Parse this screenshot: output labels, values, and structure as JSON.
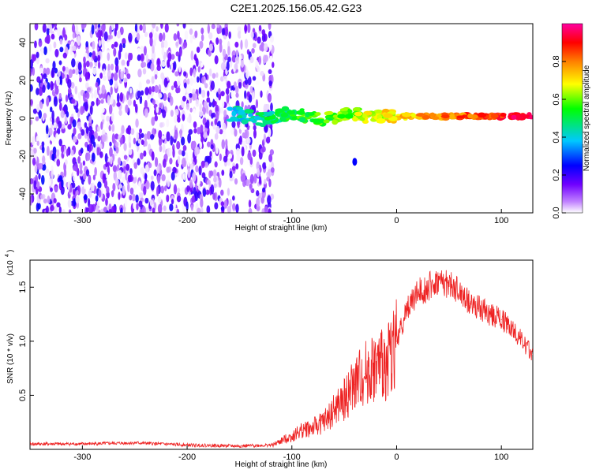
{
  "title": "C2E1.2025.156.05.42.G23",
  "chart_data": [
    {
      "type": "heatmap",
      "xlabel": "Height of straight line (km)",
      "ylabel": "Frequency (Hz)",
      "xlim": [
        -350,
        130
      ],
      "ylim": [
        -50,
        50
      ],
      "x_ticks": [
        -300,
        -200,
        -100,
        0,
        100
      ],
      "y_ticks": [
        -40,
        -20,
        0,
        20,
        40
      ],
      "colorbar": {
        "label": "Normalized spectral amplitude",
        "range": [
          0.0,
          1.0
        ],
        "ticks": [
          "0.0",
          "0.2",
          "0.4",
          "0.6",
          "0.8"
        ],
        "colors": [
          "#ffffff",
          "#b400ff",
          "#0000ff",
          "#00c8ff",
          "#00ff00",
          "#ffff00",
          "#ff8000",
          "#ff0000",
          "#ff00a0"
        ]
      },
      "features": [
        {
          "region": "noise",
          "x_range": [
            -350,
            -118
          ],
          "y_range": [
            -50,
            50
          ],
          "amplitude": 0.2
        },
        {
          "region": "signal-band",
          "x_range": [
            -160,
            130
          ],
          "frequency": 1,
          "amplitude_start": 0.4,
          "amplitude_end": 0.95
        },
        {
          "region": "isolated-blob",
          "x": -40,
          "frequency": -23,
          "amplitude": 0.25
        }
      ]
    },
    {
      "type": "line",
      "xlabel": "Height of straight line (km)",
      "ylabel": "SNR (10 * v/v)",
      "y_multiplier": "(x10",
      "y_multiplier_exp": "4",
      "xlim": [
        -350,
        130
      ],
      "ylim": [
        0,
        1.75
      ],
      "x_ticks": [
        -300,
        -200,
        -100,
        0,
        100
      ],
      "y_ticks": [
        0.5,
        1.0,
        1.5
      ],
      "y_tick_labels": [
        "0.5",
        "1.0",
        "1.5"
      ],
      "series": [
        {
          "color": "#ee2222",
          "x": [
            -350,
            -300,
            -250,
            -200,
            -150,
            -118,
            -110,
            -100,
            -90,
            -80,
            -70,
            -60,
            -50,
            -40,
            -30,
            -20,
            -10,
            0,
            10,
            20,
            30,
            40,
            50,
            60,
            70,
            80,
            90,
            100,
            110,
            120,
            130
          ],
          "y": [
            0.05,
            0.05,
            0.06,
            0.04,
            0.03,
            0.04,
            0.08,
            0.12,
            0.18,
            0.2,
            0.25,
            0.35,
            0.45,
            0.6,
            0.7,
            0.75,
            0.8,
            1.0,
            1.3,
            1.45,
            1.5,
            1.55,
            1.52,
            1.45,
            1.35,
            1.3,
            1.25,
            1.2,
            1.12,
            1.0,
            0.88
          ]
        }
      ]
    }
  ]
}
